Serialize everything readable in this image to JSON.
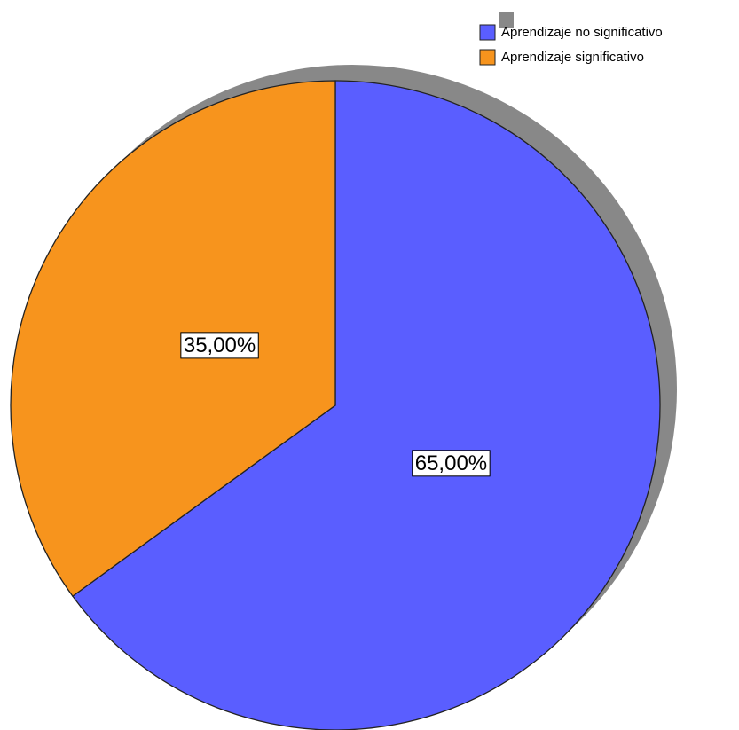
{
  "chart_data": {
    "type": "pie",
    "categories": [
      "Aprendizaje no significativo",
      "Aprendizaje significativo"
    ],
    "values": [
      65,
      35
    ],
    "value_labels": [
      "65,00%",
      "35,00%"
    ],
    "colors": [
      "#5a5eff",
      "#f7941d"
    ],
    "legend": "top-right"
  }
}
